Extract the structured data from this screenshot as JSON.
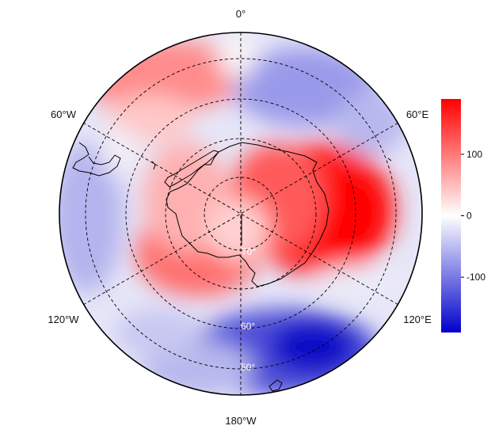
{
  "map": {
    "projection": "south polar stereographic",
    "longitude_labels": {
      "top": "0°",
      "upper_left": "60°W",
      "upper_right": "60°E",
      "lower_left": "120°W",
      "lower_right": "120°E",
      "bottom": "180°W"
    },
    "latitude_labels": {
      "inner": "70°",
      "middle": "60°",
      "outer": "50°"
    },
    "field": {
      "description_colors": {
        "positive": "#ff0000",
        "zero": "#ffffff",
        "negative": "#0000cc"
      }
    }
  },
  "colorbar": {
    "ticks": [
      "100",
      "0",
      "-100"
    ],
    "tick_values": [
      100,
      0,
      -100
    ],
    "range": [
      -190,
      190
    ],
    "colors": {
      "top": "#ff0000",
      "middle": "#ffffff",
      "bottom": "#0000cc"
    }
  }
}
